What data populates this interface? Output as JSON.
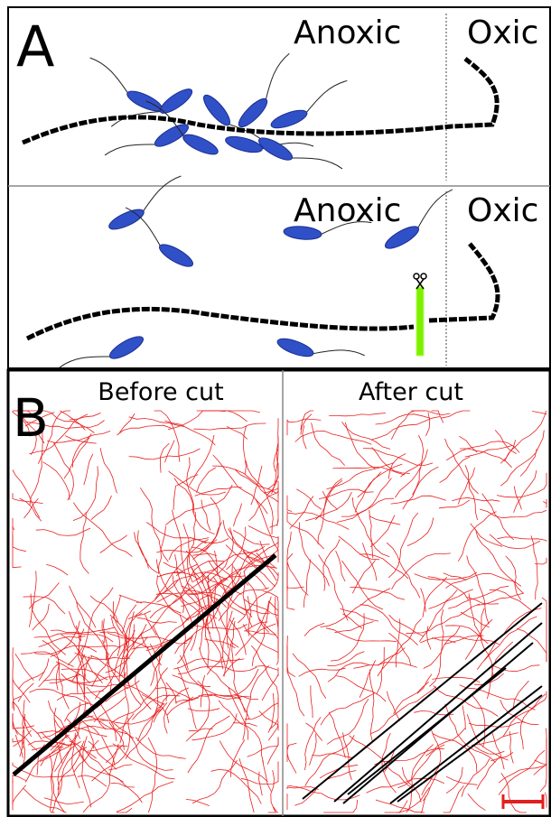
{
  "panel_a": {
    "label": "A",
    "top": {
      "anoxic": "Anoxic",
      "oxic": "Oxic"
    },
    "bottom": {
      "anoxic": "Anoxic",
      "oxic": "Oxic"
    }
  },
  "panel_b": {
    "label": "B",
    "left_title": "Before cut",
    "right_title": "After cut"
  }
}
